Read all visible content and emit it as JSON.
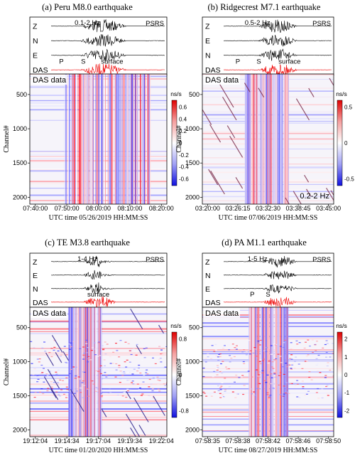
{
  "figure": {
    "panels": [
      {
        "id": "a",
        "title": "(a) Peru M8.0 earthquake",
        "band": "0.1-2 Hz",
        "station": "PSRS",
        "trace_labels": [
          "Z",
          "N",
          "E",
          "DAS"
        ],
        "phase_labels": [
          "P",
          "S",
          "surface"
        ],
        "das_label": "DAS data",
        "colorbar_unit": "ns/s",
        "colorbar_ticks": [
          "0.6",
          "0.4",
          "0.2",
          "0",
          "-0.2",
          "-0.4",
          "-0.6"
        ],
        "ylabel": "Channel#",
        "yticks": [
          "500",
          "1000",
          "1500",
          "2000"
        ],
        "xticks": [
          "07:40:00",
          "07:50:00",
          "08:00:00",
          "08:10:00",
          "08:20:00"
        ],
        "xlabel": "UTC time 05/26/2019 HH:MM:SS",
        "inner_band": "",
        "colors": {
          "seismic": "#000000",
          "das": "#ee0000"
        }
      },
      {
        "id": "b",
        "title": "(b) Ridgecrest M7.1 earthquake",
        "band": "0.5-2 Hz",
        "station": "PSRS",
        "trace_labels": [
          "Z",
          "E",
          "N",
          "DAS"
        ],
        "phase_labels": [
          "P",
          "S",
          "surface"
        ],
        "das_label": "DAS data",
        "colorbar_unit": "ns/s",
        "colorbar_ticks": [
          "0.5",
          "0",
          "-0.5"
        ],
        "ylabel": "Channel#",
        "yticks": [
          "500",
          "1000",
          "1500",
          "2000"
        ],
        "xticks": [
          "03:20:00",
          "03:26:15",
          "03:32:30",
          "03:38:45",
          "03:45:00"
        ],
        "xlabel": "UTC time 07/06/2019 HH:MM:SS",
        "inner_band": "0.2-2 Hz",
        "colors": {
          "seismic": "#000000",
          "das": "#ee0000"
        }
      },
      {
        "id": "c",
        "title": "(c) TE M3.8 earthquake",
        "band": "1-4 Hz",
        "station": "PSRS",
        "trace_labels": [
          "Z",
          "E",
          "N",
          "DAS"
        ],
        "phase_labels": [
          "surface"
        ],
        "das_label": "DAS data",
        "colorbar_unit": "ns/s",
        "colorbar_ticks": [
          "0.8",
          "0",
          "-0.8"
        ],
        "ylabel": "Channel#",
        "yticks": [
          "500",
          "1000",
          "1500",
          "2000"
        ],
        "xticks": [
          "19:12:04",
          "19:14:34",
          "19:17:04",
          "19:19:34",
          "19:22:04"
        ],
        "xlabel": "UTC time 01/20/2020 HH:MM:SS",
        "inner_band": "",
        "colors": {
          "seismic": "#000000",
          "das": "#ee0000"
        }
      },
      {
        "id": "d",
        "title": "(d) PA M1.1 earthquake",
        "band": "1-5 Hz",
        "station": "PSRS",
        "trace_labels": [
          "Z",
          "N",
          "E",
          "DAS"
        ],
        "phase_labels": [
          "P",
          "S"
        ],
        "das_label": "DAS data",
        "colorbar_unit": "ns/s",
        "colorbar_ticks": [
          "2",
          "1",
          "0",
          "-1",
          "-2"
        ],
        "ylabel": "Channel#",
        "yticks": [
          "500",
          "1000",
          "1500",
          "2000"
        ],
        "xticks": [
          "07:58:35",
          "07:58:38",
          "07:58:42",
          "07:58:46",
          "07:58:50"
        ],
        "xlabel": "UTC time 08/27/2019 HH:MM:SS",
        "inner_band": "",
        "colors": {
          "seismic": "#000000",
          "das": "#ee0000"
        }
      }
    ]
  }
}
